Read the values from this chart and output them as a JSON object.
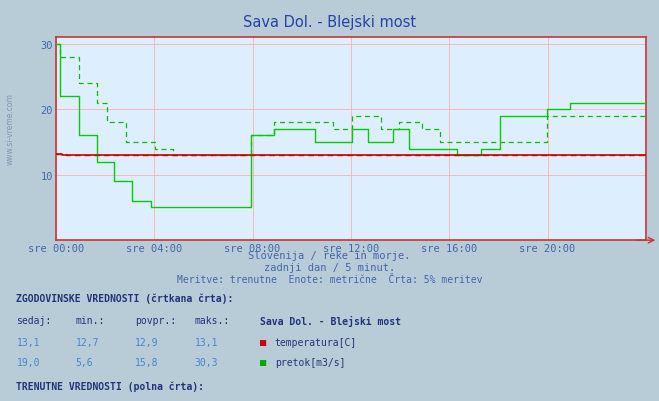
{
  "title": "Sava Dol. - Blejski most",
  "title_color": "#2244aa",
  "bg_color": "#b8ccd8",
  "plot_bg_color": "#ddeeff",
  "grid_color_v": "#ffaaaa",
  "grid_color_h": "#ffcccc",
  "xlabel_times": [
    "sre 00:00",
    "sre 04:00",
    "sre 08:00",
    "sre 12:00",
    "sre 16:00",
    "sre 20:00"
  ],
  "ylim": [
    0,
    31
  ],
  "yticks": [
    10,
    20,
    30
  ],
  "n_points": 288,
  "subtitle1": "Slovenija / reke in morje.",
  "subtitle2": "zadnji dan / 5 minut.",
  "subtitle3": "Meritve: trenutne  Enote: metrične  Črta: 5% meritev",
  "text_color": "#4466aa",
  "table_bold_color": "#223377",
  "table_value_color": "#4488cc",
  "temp_color": "#cc0000",
  "flow_color_hist": "#00bb00",
  "flow_color_curr": "#00cc00"
}
